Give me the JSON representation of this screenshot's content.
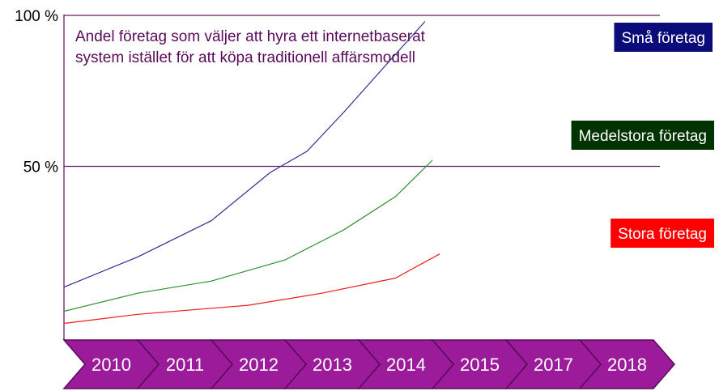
{
  "chart_data": {
    "type": "line",
    "title_lines": [
      "Andel företag som väljer att hyra ett internetbaserat",
      "system istället för att köpa  traditionell affärsmodell"
    ],
    "y_tick_labels": [
      "100 %",
      "50 %"
    ],
    "y_ticks": [
      100,
      50
    ],
    "ylim": [
      0,
      100
    ],
    "grid": "horizontal at 50 and 100",
    "categories": [
      "2010",
      "2011",
      "2012",
      "2013",
      "2014",
      "2015",
      "2017",
      "2018"
    ],
    "series": [
      {
        "name": "Små företag",
        "color": "#2e2e8f",
        "label_bg": "#0b0b7a",
        "x": [
          0,
          1.0,
          2.0,
          2.8,
          3.3,
          3.8,
          4.35,
          4.9
        ],
        "y": [
          10,
          20,
          32,
          48,
          55,
          68,
          83,
          98
        ]
      },
      {
        "name": "Medelstora företag",
        "color": "#2f8f2f",
        "label_bg": "#003300",
        "x": [
          0,
          1.0,
          2.0,
          3.0,
          3.8,
          4.5,
          5.0
        ],
        "y": [
          2,
          8,
          12,
          19,
          29,
          40,
          52
        ]
      },
      {
        "name": "Stora företag",
        "color": "#ee1c1c",
        "label_bg": "#ff0000",
        "x": [
          0,
          1.0,
          2.0,
          2.5,
          3.5,
          4.5,
          5.1
        ],
        "y": [
          -2,
          1,
          3,
          4,
          8,
          13,
          21
        ]
      }
    ]
  },
  "colors": {
    "axis": "#6a1b6a",
    "arrow_fill": "#9b1b9b",
    "arrow_stroke": "#5a0a5a",
    "title": "#5b0a5b"
  }
}
